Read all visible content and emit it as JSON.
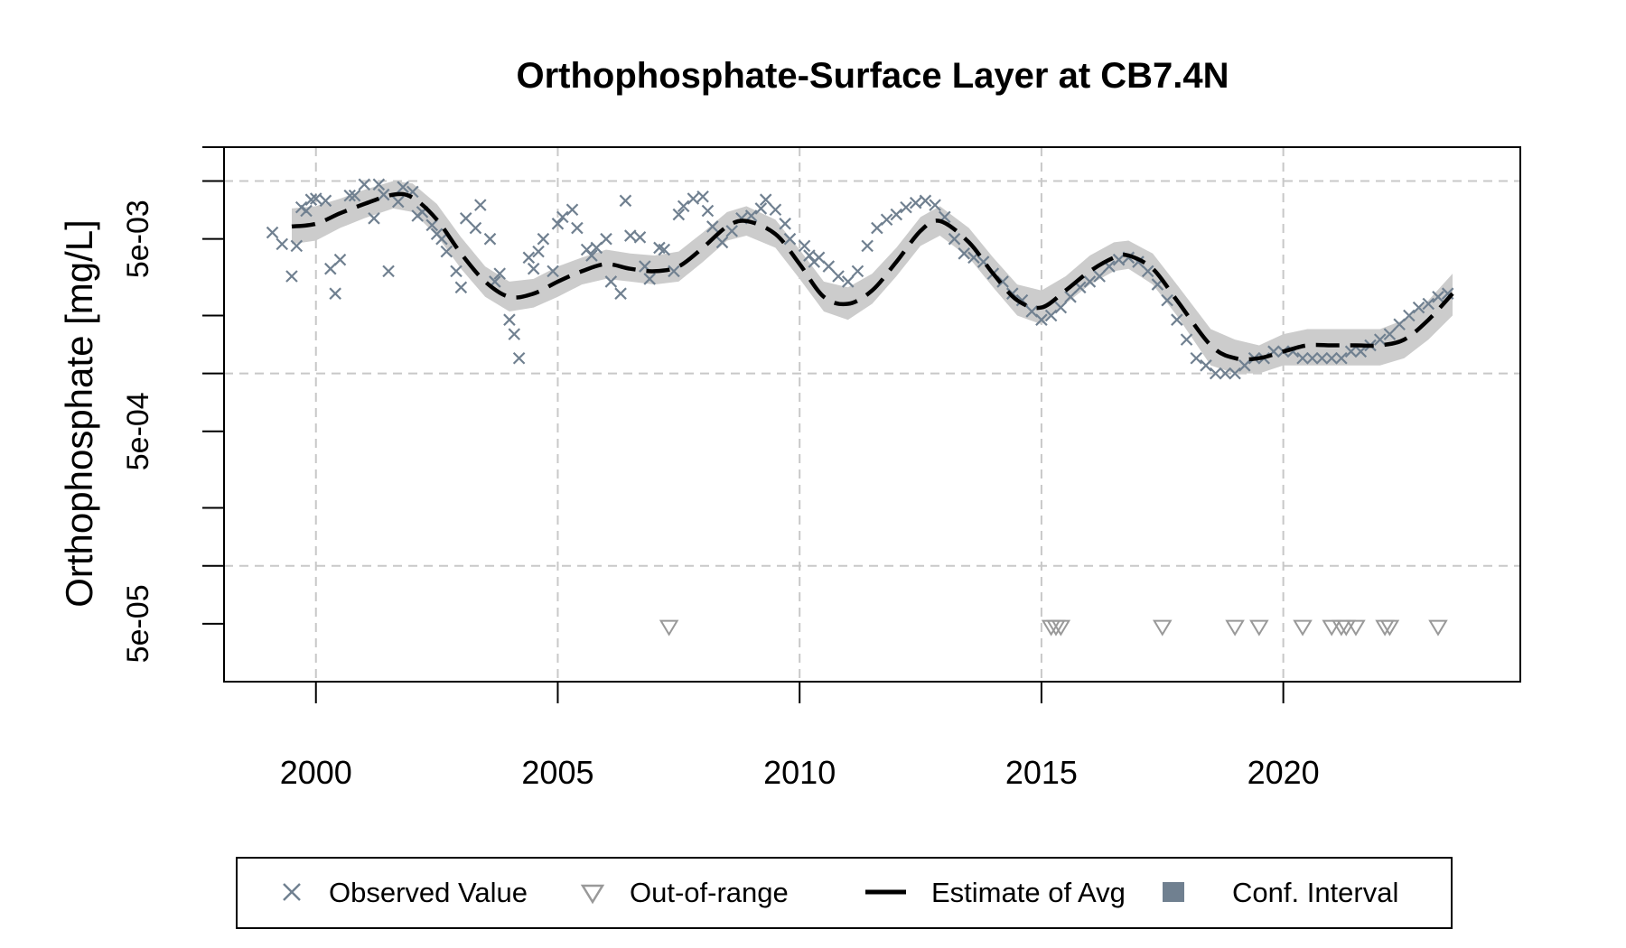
{
  "chart_data": {
    "type": "scatter",
    "title": "Orthophosphate-Surface Layer at CB7.4N",
    "xlabel": "",
    "ylabel": "Orthophosphate [mg/L]",
    "y_scale": "log",
    "xlim": [
      1998.1,
      2024.9
    ],
    "ylim": [
      2.5e-05,
      0.015
    ],
    "grid": true,
    "x_ticks": [
      {
        "value": 2000,
        "label": "2000"
      },
      {
        "value": 2005,
        "label": "2005"
      },
      {
        "value": 2010,
        "label": "2010"
      },
      {
        "value": 2015,
        "label": "2015"
      },
      {
        "value": 2020,
        "label": "2020"
      }
    ],
    "y_tick_marks": [
      5e-05,
      0.0001,
      0.0002,
      0.0005,
      0.001,
      0.002,
      0.005,
      0.01,
      0.015
    ],
    "y_labels": [
      {
        "value": 5e-05,
        "label": "5e-05"
      },
      {
        "value": 0.0005,
        "label": "5e-04"
      },
      {
        "value": 0.005,
        "label": "5e-03"
      }
    ],
    "y_gridlines": [
      0.0001,
      0.001,
      0.01
    ],
    "legend": {
      "placement": "bottom",
      "entries": [
        {
          "label": "Observed Value",
          "symbol": "x"
        },
        {
          "label": "Out-of-range",
          "symbol": "triangle-down"
        },
        {
          "label": "Estimate of Avg",
          "symbol": "dashed-line"
        },
        {
          "label": "Conf. Interval",
          "symbol": "square"
        }
      ]
    },
    "colors": {
      "observed": "#708090",
      "out_of_range": "#999999",
      "estimate": "#000000",
      "ci_band": "#cccccc",
      "grid": "#c8c8c8",
      "legend_ci": "#708090"
    },
    "series": [
      {
        "name": "Observed Value",
        "points": [
          [
            1999.1,
            0.0054
          ],
          [
            1999.3,
            0.0047
          ],
          [
            1999.5,
            0.0032
          ],
          [
            1999.6,
            0.0046
          ],
          [
            1999.7,
            0.0073
          ],
          [
            1999.8,
            0.007
          ],
          [
            1999.9,
            0.008
          ],
          [
            2000.0,
            0.0081
          ],
          [
            2000.2,
            0.0079
          ],
          [
            2000.3,
            0.0035
          ],
          [
            2000.4,
            0.0026
          ],
          [
            2000.5,
            0.0039
          ],
          [
            2000.7,
            0.0084
          ],
          [
            2000.8,
            0.0084
          ],
          [
            2001.0,
            0.0096
          ],
          [
            2001.2,
            0.0064
          ],
          [
            2001.3,
            0.0096
          ],
          [
            2001.4,
            0.0085
          ],
          [
            2001.5,
            0.0034
          ],
          [
            2001.7,
            0.0078
          ],
          [
            2001.8,
            0.0093
          ],
          [
            2002.0,
            0.0088
          ],
          [
            2002.1,
            0.0066
          ],
          [
            2002.2,
            0.0069
          ],
          [
            2002.4,
            0.0059
          ],
          [
            2002.5,
            0.0053
          ],
          [
            2002.6,
            0.005
          ],
          [
            2002.7,
            0.0043
          ],
          [
            2002.9,
            0.0034
          ],
          [
            2003.0,
            0.0028
          ],
          [
            2003.1,
            0.0064
          ],
          [
            2003.3,
            0.0057
          ],
          [
            2003.4,
            0.0075
          ],
          [
            2003.6,
            0.005
          ],
          [
            2003.7,
            0.003
          ],
          [
            2003.8,
            0.0033
          ],
          [
            2004.0,
            0.0019
          ],
          [
            2004.1,
            0.0016
          ],
          [
            2004.2,
            0.0012
          ],
          [
            2004.4,
            0.004
          ],
          [
            2004.5,
            0.0035
          ],
          [
            2004.6,
            0.0043
          ],
          [
            2004.7,
            0.005
          ],
          [
            2004.9,
            0.0034
          ],
          [
            2005.0,
            0.006
          ],
          [
            2005.1,
            0.0065
          ],
          [
            2005.3,
            0.0071
          ],
          [
            2005.4,
            0.0057
          ],
          [
            2005.6,
            0.0044
          ],
          [
            2005.7,
            0.0041
          ],
          [
            2005.8,
            0.0045
          ],
          [
            2006.0,
            0.005
          ],
          [
            2006.1,
            0.003
          ],
          [
            2006.3,
            0.0026
          ],
          [
            2006.4,
            0.0079
          ],
          [
            2006.5,
            0.0052
          ],
          [
            2006.7,
            0.0051
          ],
          [
            2006.8,
            0.0036
          ],
          [
            2006.9,
            0.0031
          ],
          [
            2007.1,
            0.0045
          ],
          [
            2007.2,
            0.0044
          ],
          [
            2007.4,
            0.0034
          ],
          [
            2007.5,
            0.0067
          ],
          [
            2007.6,
            0.0074
          ],
          [
            2007.8,
            0.0081
          ],
          [
            2008.0,
            0.0083
          ],
          [
            2008.1,
            0.007
          ],
          [
            2008.2,
            0.0058
          ],
          [
            2008.4,
            0.0048
          ],
          [
            2008.6,
            0.0055
          ],
          [
            2008.8,
            0.0064
          ],
          [
            2009.0,
            0.0066
          ],
          [
            2009.2,
            0.0072
          ],
          [
            2009.3,
            0.008
          ],
          [
            2009.5,
            0.0071
          ],
          [
            2009.7,
            0.006
          ],
          [
            2009.8,
            0.005
          ],
          [
            2010.1,
            0.0046
          ],
          [
            2010.2,
            0.0041
          ],
          [
            2010.3,
            0.0038
          ],
          [
            2010.4,
            0.004
          ],
          [
            2010.6,
            0.0036
          ],
          [
            2010.8,
            0.0032
          ],
          [
            2011.0,
            0.003
          ],
          [
            2011.2,
            0.0034
          ],
          [
            2011.4,
            0.0046
          ],
          [
            2011.6,
            0.0057
          ],
          [
            2011.8,
            0.0063
          ],
          [
            2012.0,
            0.0067
          ],
          [
            2012.2,
            0.0073
          ],
          [
            2012.4,
            0.0077
          ],
          [
            2012.6,
            0.0079
          ],
          [
            2012.8,
            0.0075
          ],
          [
            2013.0,
            0.0065
          ],
          [
            2013.2,
            0.005
          ],
          [
            2013.4,
            0.0042
          ],
          [
            2013.6,
            0.004
          ],
          [
            2013.8,
            0.0038
          ],
          [
            2014.0,
            0.0033
          ],
          [
            2014.2,
            0.003
          ],
          [
            2014.4,
            0.0026
          ],
          [
            2014.6,
            0.0024
          ],
          [
            2014.8,
            0.0021
          ],
          [
            2015.0,
            0.0019
          ],
          [
            2015.2,
            0.002
          ],
          [
            2015.4,
            0.0022
          ],
          [
            2015.6,
            0.0025
          ],
          [
            2015.8,
            0.0028
          ],
          [
            2016.0,
            0.003
          ],
          [
            2016.2,
            0.0032
          ],
          [
            2016.4,
            0.0036
          ],
          [
            2016.6,
            0.0039
          ],
          [
            2016.8,
            0.004
          ],
          [
            2017.0,
            0.0038
          ],
          [
            2017.2,
            0.0034
          ],
          [
            2017.4,
            0.0029
          ],
          [
            2017.6,
            0.0024
          ],
          [
            2017.8,
            0.0019
          ],
          [
            2018.0,
            0.0015
          ],
          [
            2018.2,
            0.0012
          ],
          [
            2018.4,
            0.0011
          ],
          [
            2018.6,
            0.001
          ],
          [
            2018.8,
            0.001
          ],
          [
            2019.0,
            0.001
          ],
          [
            2019.2,
            0.0011
          ],
          [
            2019.4,
            0.0012
          ],
          [
            2019.6,
            0.0012
          ],
          [
            2019.8,
            0.0013
          ],
          [
            2020.0,
            0.0013
          ],
          [
            2020.2,
            0.0013
          ],
          [
            2020.4,
            0.0012
          ],
          [
            2020.6,
            0.0012
          ],
          [
            2020.8,
            0.0012
          ],
          [
            2021.0,
            0.0012
          ],
          [
            2021.2,
            0.0012
          ],
          [
            2021.4,
            0.0013
          ],
          [
            2021.6,
            0.0013
          ],
          [
            2021.8,
            0.0014
          ],
          [
            2022.0,
            0.0015
          ],
          [
            2022.2,
            0.0016
          ],
          [
            2022.4,
            0.0018
          ],
          [
            2022.6,
            0.002
          ],
          [
            2022.8,
            0.0022
          ],
          [
            2023.0,
            0.0023
          ],
          [
            2023.2,
            0.0025
          ],
          [
            2023.4,
            0.0026
          ]
        ]
      },
      {
        "name": "Out-of-range",
        "points": [
          [
            2007.3,
            4.8e-05
          ],
          [
            2015.2,
            4.8e-05
          ],
          [
            2015.3,
            4.8e-05
          ],
          [
            2015.4,
            4.8e-05
          ],
          [
            2017.5,
            4.8e-05
          ],
          [
            2019.0,
            4.8e-05
          ],
          [
            2019.5,
            4.8e-05
          ],
          [
            2020.4,
            4.8e-05
          ],
          [
            2021.0,
            4.8e-05
          ],
          [
            2021.2,
            4.8e-05
          ],
          [
            2021.3,
            4.8e-05
          ],
          [
            2021.5,
            4.8e-05
          ],
          [
            2022.1,
            4.8e-05
          ],
          [
            2022.2,
            4.8e-05
          ],
          [
            2023.2,
            4.8e-05
          ]
        ]
      },
      {
        "name": "Estimate of Avg",
        "points": [
          [
            1999.5,
            0.0058
          ],
          [
            2000.0,
            0.006
          ],
          [
            2000.5,
            0.0068
          ],
          [
            2001.0,
            0.0076
          ],
          [
            2001.6,
            0.0085
          ],
          [
            2002.0,
            0.0082
          ],
          [
            2002.5,
            0.0063
          ],
          [
            2003.0,
            0.0042
          ],
          [
            2003.5,
            0.003
          ],
          [
            2004.0,
            0.0025
          ],
          [
            2004.5,
            0.0026
          ],
          [
            2005.0,
            0.003
          ],
          [
            2005.5,
            0.0034
          ],
          [
            2006.0,
            0.0037
          ],
          [
            2006.5,
            0.0035
          ],
          [
            2007.0,
            0.0034
          ],
          [
            2007.5,
            0.0036
          ],
          [
            2008.0,
            0.0045
          ],
          [
            2008.5,
            0.0058
          ],
          [
            2008.9,
            0.0062
          ],
          [
            2009.5,
            0.0053
          ],
          [
            2010.0,
            0.0037
          ],
          [
            2010.5,
            0.0025
          ],
          [
            2011.0,
            0.0023
          ],
          [
            2011.5,
            0.0027
          ],
          [
            2012.0,
            0.0038
          ],
          [
            2012.5,
            0.0055
          ],
          [
            2012.9,
            0.0062
          ],
          [
            2013.5,
            0.0048
          ],
          [
            2014.0,
            0.0033
          ],
          [
            2014.5,
            0.0024
          ],
          [
            2015.0,
            0.0022
          ],
          [
            2015.5,
            0.0027
          ],
          [
            2016.0,
            0.0034
          ],
          [
            2016.5,
            0.004
          ],
          [
            2016.8,
            0.0041
          ],
          [
            2017.3,
            0.0035
          ],
          [
            2017.8,
            0.0024
          ],
          [
            2018.5,
            0.0014
          ],
          [
            2019.0,
            0.0012
          ],
          [
            2019.5,
            0.0012
          ],
          [
            2020.0,
            0.0013
          ],
          [
            2020.5,
            0.0014
          ],
          [
            2021.0,
            0.0014
          ],
          [
            2021.5,
            0.0014
          ],
          [
            2022.0,
            0.0014
          ],
          [
            2022.5,
            0.0015
          ],
          [
            2023.0,
            0.0019
          ],
          [
            2023.5,
            0.0026
          ]
        ]
      },
      {
        "name": "Conf. Interval",
        "points": [
          [
            1999.5,
            0.0047,
            0.0072
          ],
          [
            2000.0,
            0.0049,
            0.0074
          ],
          [
            2000.5,
            0.0057,
            0.0081
          ],
          [
            2001.0,
            0.0064,
            0.009
          ],
          [
            2001.6,
            0.0072,
            0.01
          ],
          [
            2002.0,
            0.0069,
            0.0097
          ],
          [
            2002.5,
            0.0052,
            0.0076
          ],
          [
            2003.0,
            0.0035,
            0.0051
          ],
          [
            2003.5,
            0.0025,
            0.0036
          ],
          [
            2004.0,
            0.0021,
            0.003
          ],
          [
            2004.5,
            0.0022,
            0.0031
          ],
          [
            2005.0,
            0.0025,
            0.0036
          ],
          [
            2005.5,
            0.0029,
            0.004
          ],
          [
            2006.0,
            0.0031,
            0.0044
          ],
          [
            2006.5,
            0.003,
            0.0042
          ],
          [
            2007.0,
            0.0029,
            0.0041
          ],
          [
            2007.5,
            0.003,
            0.0043
          ],
          [
            2008.0,
            0.0038,
            0.0054
          ],
          [
            2008.5,
            0.0049,
            0.0069
          ],
          [
            2008.9,
            0.0052,
            0.0074
          ],
          [
            2009.5,
            0.0045,
            0.0063
          ],
          [
            2010.0,
            0.0031,
            0.0044
          ],
          [
            2010.5,
            0.0021,
            0.003
          ],
          [
            2011.0,
            0.0019,
            0.0028
          ],
          [
            2011.5,
            0.0023,
            0.0033
          ],
          [
            2012.0,
            0.0032,
            0.0045
          ],
          [
            2012.5,
            0.0046,
            0.0065
          ],
          [
            2012.9,
            0.0052,
            0.0074
          ],
          [
            2013.5,
            0.004,
            0.0057
          ],
          [
            2014.0,
            0.0028,
            0.004
          ],
          [
            2014.5,
            0.002,
            0.0029
          ],
          [
            2015.0,
            0.0018,
            0.0027
          ],
          [
            2015.5,
            0.0023,
            0.0032
          ],
          [
            2016.0,
            0.0029,
            0.0041
          ],
          [
            2016.5,
            0.0034,
            0.0048
          ],
          [
            2016.8,
            0.0035,
            0.0049
          ],
          [
            2017.3,
            0.0029,
            0.0042
          ],
          [
            2017.8,
            0.002,
            0.0029
          ],
          [
            2018.5,
            0.0011,
            0.0017
          ],
          [
            2019.0,
            0.001,
            0.0015
          ],
          [
            2019.5,
            0.001,
            0.0014
          ],
          [
            2020.0,
            0.0011,
            0.0016
          ],
          [
            2020.5,
            0.0011,
            0.0017
          ],
          [
            2021.0,
            0.0011,
            0.0017
          ],
          [
            2021.5,
            0.0011,
            0.0017
          ],
          [
            2022.0,
            0.0011,
            0.0017
          ],
          [
            2022.5,
            0.0012,
            0.0019
          ],
          [
            2023.0,
            0.0015,
            0.0024
          ],
          [
            2023.5,
            0.002,
            0.0033
          ]
        ]
      }
    ]
  }
}
